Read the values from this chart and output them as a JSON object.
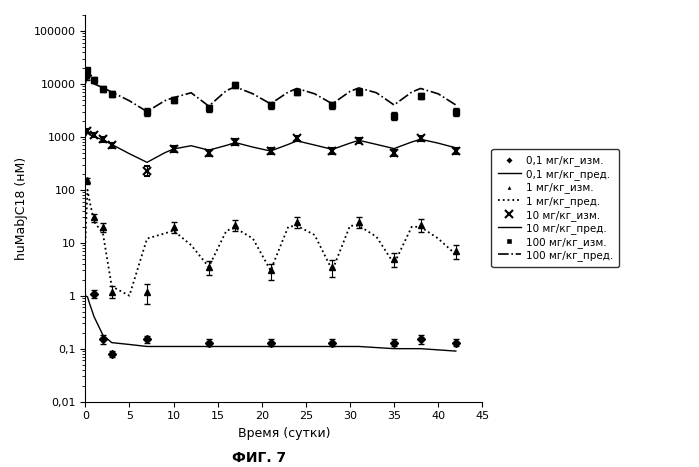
{
  "title": "ФИГ. 7",
  "xlabel": "Время (сутки)",
  "ylabel": "huMabJC18 (нМ)",
  "xlim": [
    0,
    45
  ],
  "ylim": [
    0.01,
    200000
  ],
  "xticks": [
    0,
    5,
    10,
    15,
    20,
    25,
    30,
    35,
    40,
    45
  ],
  "dose_01_meas_x": [
    0.25,
    1,
    2,
    3,
    7,
    14,
    21,
    28,
    35,
    38,
    42
  ],
  "dose_01_meas_y": [
    15000,
    1.1,
    0.15,
    0.08,
    0.15,
    0.13,
    0.13,
    0.13,
    0.13,
    0.15,
    0.13
  ],
  "dose_01_meas_yerr_lo": [
    3000,
    0.2,
    0.03,
    0.01,
    0.02,
    0.02,
    0.02,
    0.02,
    0.02,
    0.03,
    0.02
  ],
  "dose_01_meas_yerr_hi": [
    3000,
    0.2,
    0.03,
    0.01,
    0.02,
    0.02,
    0.02,
    0.02,
    0.02,
    0.03,
    0.02
  ],
  "dose_01_pred_x": [
    0,
    0.25,
    0.5,
    1,
    2,
    3,
    5,
    7,
    10,
    14,
    17,
    21,
    24,
    28,
    31,
    35,
    38,
    42
  ],
  "dose_01_pred_y": [
    1.0,
    0.95,
    0.7,
    0.4,
    0.18,
    0.13,
    0.12,
    0.11,
    0.11,
    0.11,
    0.11,
    0.11,
    0.11,
    0.11,
    0.11,
    0.1,
    0.1,
    0.09
  ],
  "dose_1_meas_x": [
    0.25,
    1,
    2,
    3,
    7,
    10,
    14,
    17,
    21,
    24,
    28,
    31,
    35,
    38,
    42
  ],
  "dose_1_meas_y": [
    150,
    30,
    20,
    1.2,
    1.2,
    20,
    3.5,
    22,
    3.0,
    25,
    3.5,
    25,
    5.0,
    22,
    7.0
  ],
  "dose_1_meas_yerr_lo": [
    20,
    5,
    4,
    0.3,
    0.5,
    5,
    1.0,
    5,
    1.0,
    6,
    1.2,
    6,
    1.5,
    6,
    2.0
  ],
  "dose_1_meas_yerr_hi": [
    20,
    5,
    4,
    0.3,
    0.5,
    5,
    1.0,
    5,
    1.0,
    6,
    1.2,
    6,
    1.5,
    6,
    2.0
  ],
  "dose_1_pred_x": [
    0,
    0.25,
    0.5,
    1,
    2,
    3,
    5,
    7,
    9,
    10,
    12,
    14,
    16,
    17,
    19,
    21,
    23,
    24,
    26,
    28,
    30,
    31,
    33,
    35,
    37,
    38,
    40,
    42
  ],
  "dose_1_pred_y": [
    10,
    100,
    60,
    25,
    15,
    1.5,
    1.0,
    12,
    15,
    17,
    9,
    3.5,
    17,
    19,
    12,
    3.0,
    20,
    21,
    14,
    3.0,
    21,
    21,
    13,
    4.0,
    20,
    20,
    12,
    6.0
  ],
  "dose_10_meas_x": [
    0.25,
    1,
    2,
    3,
    7,
    10,
    14,
    17,
    21,
    24,
    28,
    31,
    35,
    38,
    42
  ],
  "dose_10_meas_y": [
    1300,
    1100,
    900,
    700,
    230,
    600,
    500,
    800,
    550,
    950,
    550,
    850,
    500,
    950,
    550
  ],
  "dose_10_meas_yerr_lo": [
    120,
    100,
    90,
    80,
    50,
    80,
    70,
    100,
    70,
    110,
    70,
    100,
    70,
    110,
    70
  ],
  "dose_10_meas_yerr_hi": [
    120,
    100,
    90,
    80,
    50,
    80,
    70,
    100,
    70,
    110,
    70,
    100,
    70,
    110,
    70
  ],
  "dose_10_pred_x": [
    0,
    0.25,
    0.5,
    1,
    2,
    3,
    5,
    7,
    9,
    10,
    12,
    14,
    16,
    17,
    19,
    21,
    23,
    24,
    26,
    28,
    30,
    31,
    33,
    35,
    37,
    38,
    40,
    42
  ],
  "dose_10_pred_y": [
    1000,
    1200,
    1100,
    1000,
    880,
    720,
    480,
    330,
    500,
    590,
    680,
    560,
    690,
    780,
    640,
    540,
    720,
    840,
    700,
    580,
    760,
    860,
    720,
    600,
    800,
    900,
    760,
    620
  ],
  "dose_100_meas_x": [
    0.25,
    1,
    2,
    3,
    7,
    10,
    14,
    17,
    21,
    24,
    28,
    31,
    35,
    38,
    42
  ],
  "dose_100_meas_y": [
    18000,
    12000,
    8000,
    6500,
    3000,
    5000,
    3500,
    9500,
    4000,
    7000,
    4000,
    7000,
    2500,
    6000,
    3000
  ],
  "dose_100_meas_yerr_lo": [
    2000,
    1500,
    1000,
    800,
    500,
    700,
    500,
    1200,
    600,
    900,
    600,
    900,
    400,
    800,
    500
  ],
  "dose_100_meas_yerr_hi": [
    2000,
    1500,
    1000,
    800,
    500,
    700,
    500,
    1200,
    600,
    900,
    600,
    900,
    400,
    800,
    500
  ],
  "dose_100_pred_x": [
    0,
    0.25,
    0.5,
    1,
    2,
    3,
    5,
    7,
    9,
    10,
    12,
    14,
    16,
    17,
    19,
    21,
    23,
    24,
    26,
    28,
    30,
    31,
    33,
    35,
    37,
    38,
    40,
    42
  ],
  "dose_100_pred_y": [
    10000,
    15000,
    12000,
    10000,
    8500,
    7000,
    4800,
    3000,
    4800,
    5500,
    6800,
    3800,
    7500,
    8800,
    6500,
    4200,
    7000,
    8200,
    6500,
    4200,
    7200,
    8400,
    6800,
    4000,
    7000,
    8200,
    6500,
    4000
  ],
  "legend_labels": [
    "0,1 мг/кг_изм.",
    "0,1 мг/кг_пред.",
    "1 мг/кг_изм.",
    "1 мг/кг_пред.",
    "10 мг/кг_изм.",
    "10 мг/кг_пред.",
    "100 мг/кг_изм.",
    "100 мг/кг_пред."
  ]
}
